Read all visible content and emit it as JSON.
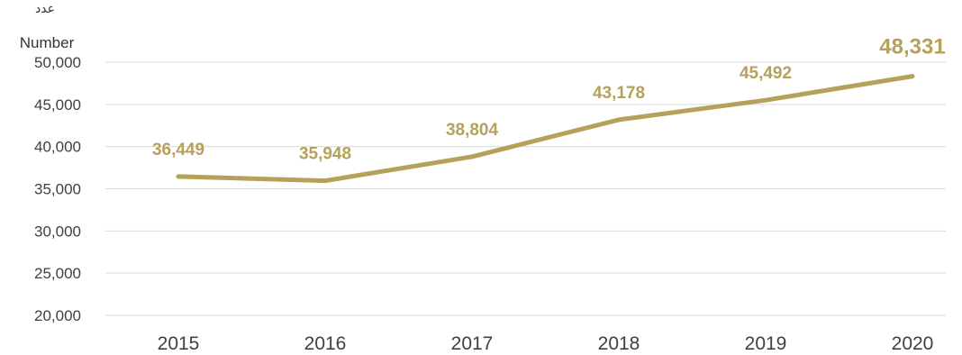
{
  "chart_data": {
    "type": "line",
    "ylabel_ar": "عدد",
    "ylabel": "Number",
    "categories": [
      "2015",
      "2016",
      "2017",
      "2018",
      "2019",
      "2020"
    ],
    "series": [
      {
        "values": [
          36449,
          35948,
          38804,
          43178,
          45492,
          48331
        ]
      }
    ],
    "data_labels": [
      "36,449",
      "35,948",
      "38,804",
      "43,178",
      "45,492",
      "48,331"
    ],
    "ylim": [
      20000,
      50000
    ],
    "yticks": [
      "20,000",
      "25,000",
      "30,000",
      "35,000",
      "40,000",
      "45,000",
      "50,000"
    ],
    "grid": true,
    "colors": {
      "line": "#b5a15a",
      "labels": "#b5a15a",
      "grid": "#d9d9d9",
      "axis_text": "#404040"
    }
  }
}
